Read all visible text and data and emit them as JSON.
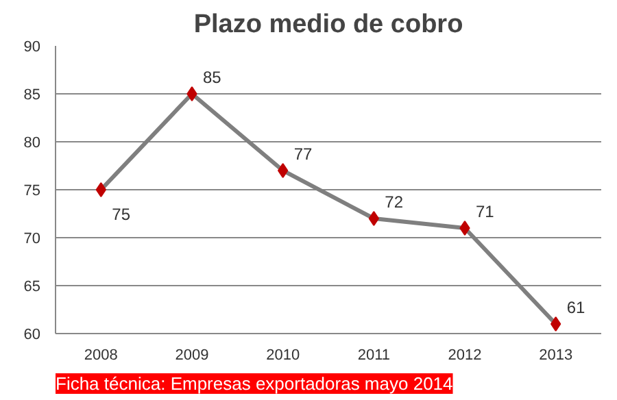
{
  "chart_data": {
    "type": "line",
    "title": "Plazo medio de cobro",
    "categories": [
      "2008",
      "2009",
      "2010",
      "2011",
      "2012",
      "2013"
    ],
    "series": [
      {
        "color": "#7f7f7f",
        "colors": [
          "#c00000",
          "#c00000",
          "#c00000",
          "#c00000",
          "#c00000",
          "#c00000"
        ],
        "values": [
          75,
          85,
          77,
          72,
          71,
          61
        ]
      }
    ],
    "marker": "diamond",
    "data_labels": true,
    "ylim": [
      60,
      90
    ],
    "yticks": [
      60,
      65,
      70,
      75,
      80,
      85,
      90
    ],
    "grid": "y",
    "annotations": [
      "Ficha técnica: Empresas exportadoras mayo 2014"
    ]
  }
}
